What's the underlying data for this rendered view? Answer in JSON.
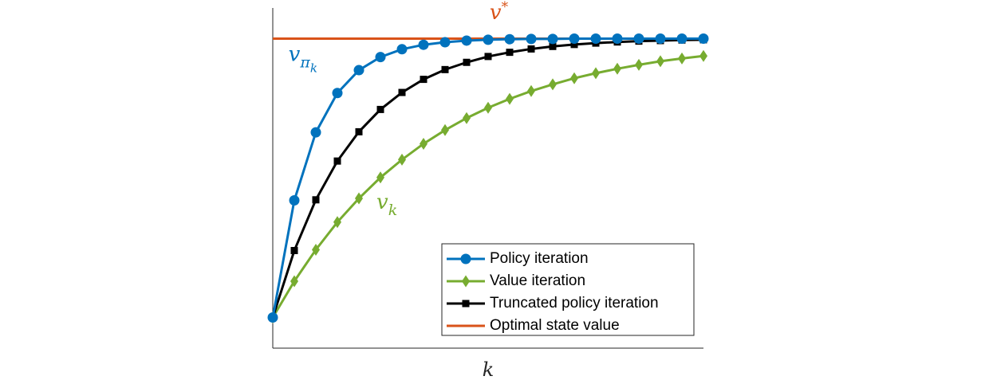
{
  "chart_data": {
    "type": "line",
    "x_label": "k",
    "x": [
      0,
      1,
      2,
      3,
      4,
      5,
      6,
      7,
      8,
      9,
      10,
      11,
      12,
      13,
      14,
      15,
      16,
      17,
      18,
      19,
      20
    ],
    "xlim": [
      0,
      20
    ],
    "ylim": [
      -0.11,
      1.11
    ],
    "series": [
      {
        "name": "Policy iteration",
        "color": "#0072bd",
        "marker": "circle",
        "values": [
          0,
          0.42,
          0.664,
          0.805,
          0.887,
          0.934,
          0.962,
          0.978,
          0.987,
          0.993,
          0.996,
          0.998,
          0.999,
          0.999,
          1,
          1,
          1,
          1,
          1,
          1,
          1
        ]
      },
      {
        "name": "Value iteration",
        "color": "#77ac30",
        "marker": "diamond",
        "values": [
          0,
          0.13,
          0.243,
          0.342,
          0.427,
          0.502,
          0.566,
          0.623,
          0.672,
          0.715,
          0.752,
          0.784,
          0.812,
          0.836,
          0.858,
          0.876,
          0.892,
          0.906,
          0.919,
          0.929,
          0.938
        ]
      },
      {
        "name": "Truncated policy iteration",
        "color": "#000000",
        "marker": "square",
        "values": [
          0,
          0.24,
          0.422,
          0.561,
          0.666,
          0.746,
          0.807,
          0.854,
          0.889,
          0.915,
          0.936,
          0.951,
          0.963,
          0.972,
          0.979,
          0.984,
          0.988,
          0.991,
          0.993,
          0.995,
          0.996
        ]
      },
      {
        "name": "Optimal state value",
        "color": "#d95319",
        "marker": "none",
        "values": [
          1,
          1,
          1,
          1,
          1,
          1,
          1,
          1,
          1,
          1,
          1,
          1,
          1,
          1,
          1,
          1,
          1,
          1,
          1,
          1,
          1
        ]
      }
    ],
    "annotations": [
      {
        "base": "v",
        "sup": "*",
        "color": "#d95319",
        "x": 10.5,
        "y": 1.07
      },
      {
        "base": "v",
        "sub": "π",
        "subsub": "k",
        "color": "#0072bd",
        "x": 1.4,
        "y": 0.92
      },
      {
        "base": "v",
        "sub": "k",
        "color": "#77ac30",
        "x": 5.3,
        "y": 0.39
      }
    ],
    "legend": "lower right",
    "grid": false
  }
}
